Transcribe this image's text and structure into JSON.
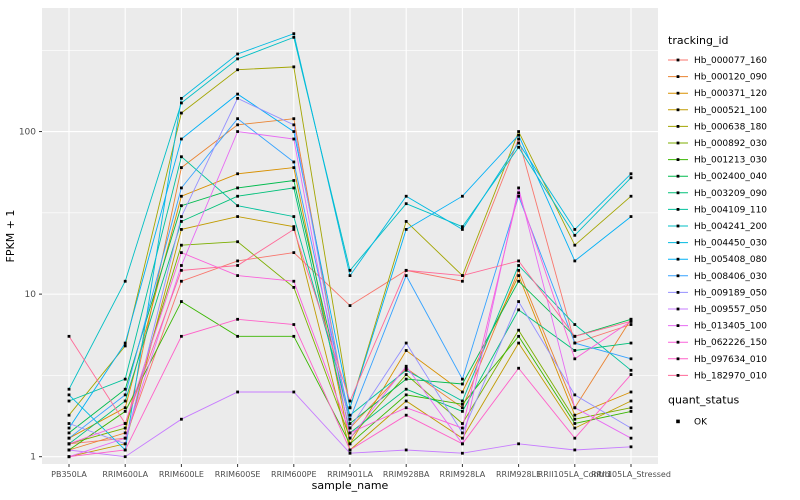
{
  "figure": {
    "background": "#FFFFFF",
    "panel_bg": "#EBEBEB",
    "grid_color": "#FFFFFF",
    "tick_text_color": "#4D4D4D",
    "title_text_color": "#000000",
    "point_color": "#000000"
  },
  "chart_data": {
    "type": "line",
    "title": "",
    "xlabel": "sample_name",
    "ylabel": "FPKM + 1",
    "y_scale": "log10",
    "y_ticks": [
      1,
      10,
      100
    ],
    "y_minor_ticks": [
      3.1623,
      31.623,
      316.23
    ],
    "ylim": [
      0.9,
      560
    ],
    "grid": true,
    "legend_position": "right",
    "categories": [
      "PB350LA",
      "RRIM600LA",
      "RRIM600LE",
      "RRIM600SE",
      "RRIM600PE",
      "RRIM901LA",
      "RRIM928BA",
      "RRIM928LA",
      "RRIM928LE",
      "RRII105LA_Control",
      "RRII105LA_Stressed"
    ],
    "series": [
      {
        "name": "Hb_000077_160",
        "color": "#F8766D",
        "values": [
          1.2,
          1.3,
          12,
          16,
          18,
          8.5,
          14,
          12,
          90,
          5,
          6.5
        ]
      },
      {
        "name": "Hb_000120_090",
        "color": "#EA8331",
        "values": [
          1.1,
          1.4,
          60,
          110,
          120,
          1.5,
          3.5,
          2,
          14,
          2,
          7
        ]
      },
      {
        "name": "Hb_000371_120",
        "color": "#D89000",
        "values": [
          1.3,
          2,
          40,
          55,
          60,
          1.2,
          4.5,
          2.5,
          13,
          1.8,
          2.5
        ]
      },
      {
        "name": "Hb_000521_100",
        "color": "#C09B00",
        "values": [
          1,
          1.2,
          25,
          30,
          26,
          1.1,
          2.2,
          1.3,
          5,
          1.5,
          2.2
        ]
      },
      {
        "name": "Hb_000638_180",
        "color": "#A3A500",
        "values": [
          1.8,
          4.8,
          130,
          240,
          250,
          2,
          28,
          13,
          100,
          20,
          40
        ]
      },
      {
        "name": "Hb_000892_030",
        "color": "#7CAE00",
        "values": [
          1.2,
          1.5,
          20,
          21,
          11,
          1.3,
          3.2,
          1.6,
          6,
          1.7,
          2
        ]
      },
      {
        "name": "Hb_001213_030",
        "color": "#39B600",
        "values": [
          1.1,
          1.9,
          9,
          5.5,
          5.5,
          1.2,
          2.4,
          2.1,
          5.5,
          1.6,
          1.9
        ]
      },
      {
        "name": "Hb_002400_040",
        "color": "#00BB4E",
        "values": [
          1.4,
          2.6,
          35,
          45,
          50,
          1.6,
          3,
          2.8,
          12,
          5.5,
          7
        ]
      },
      {
        "name": "Hb_003209_090",
        "color": "#00C079",
        "values": [
          1.2,
          2.2,
          28,
          40,
          45,
          1.4,
          2.6,
          1.9,
          8,
          4.5,
          5
        ]
      },
      {
        "name": "Hb_004109_110",
        "color": "#00C19C",
        "values": [
          2.2,
          3,
          70,
          35,
          30,
          1.8,
          3.4,
          2.2,
          15,
          6.5,
          3.4
        ]
      },
      {
        "name": "Hb_004241_200",
        "color": "#00BFC4",
        "values": [
          2.6,
          12,
          150,
          280,
          380,
          14,
          36,
          26,
          80,
          23,
          52
        ]
      },
      {
        "name": "Hb_004450_030",
        "color": "#00BAE0",
        "values": [
          2.4,
          1.1,
          160,
          300,
          400,
          13,
          40,
          25,
          85,
          25,
          55
        ]
      },
      {
        "name": "Hb_005408_080",
        "color": "#00B0F6",
        "values": [
          1.5,
          5,
          90,
          170,
          100,
          2,
          25,
          40,
          95,
          16,
          30
        ]
      },
      {
        "name": "Hb_008406_030",
        "color": "#35A2FF",
        "values": [
          1.3,
          2.4,
          45,
          120,
          65,
          1.7,
          13,
          3,
          40,
          5,
          4
        ]
      },
      {
        "name": "Hb_009189_050",
        "color": "#9590FF",
        "values": [
          1.6,
          1.2,
          30,
          160,
          110,
          1.5,
          5,
          1.4,
          9,
          2.4,
          1.5
        ]
      },
      {
        "name": "Hb_009557_050",
        "color": "#C77CFF",
        "values": [
          1.1,
          1,
          1.7,
          2.5,
          2.5,
          1.05,
          1.1,
          1.05,
          1.2,
          1.1,
          1.15
        ]
      },
      {
        "name": "Hb_013405_100",
        "color": "#E76BF3",
        "values": [
          1,
          1.3,
          15,
          100,
          90,
          1.3,
          3.6,
          1.2,
          45,
          2,
          1.3
        ]
      },
      {
        "name": "Hb_062226_150",
        "color": "#FA62DB",
        "values": [
          1.2,
          1.6,
          18,
          13,
          12,
          1.4,
          2,
          1.5,
          42,
          4,
          6.8
        ]
      },
      {
        "name": "Hb_097634_010",
        "color": "#FF61C9",
        "values": [
          1,
          1.1,
          5.5,
          7,
          6.5,
          1.1,
          1.8,
          1.2,
          3.5,
          1.3,
          3.2
        ]
      },
      {
        "name": "Hb_182970_010",
        "color": "#FF6A98",
        "values": [
          5.5,
          1.6,
          14,
          15,
          25,
          2.2,
          14,
          13,
          16,
          5.5,
          6.8
        ]
      }
    ],
    "legend": {
      "series_title": "tracking_id",
      "status_title": "quant_status",
      "status_items": [
        {
          "label": "OK",
          "shape": "square-point",
          "color": "#000000"
        }
      ]
    }
  }
}
